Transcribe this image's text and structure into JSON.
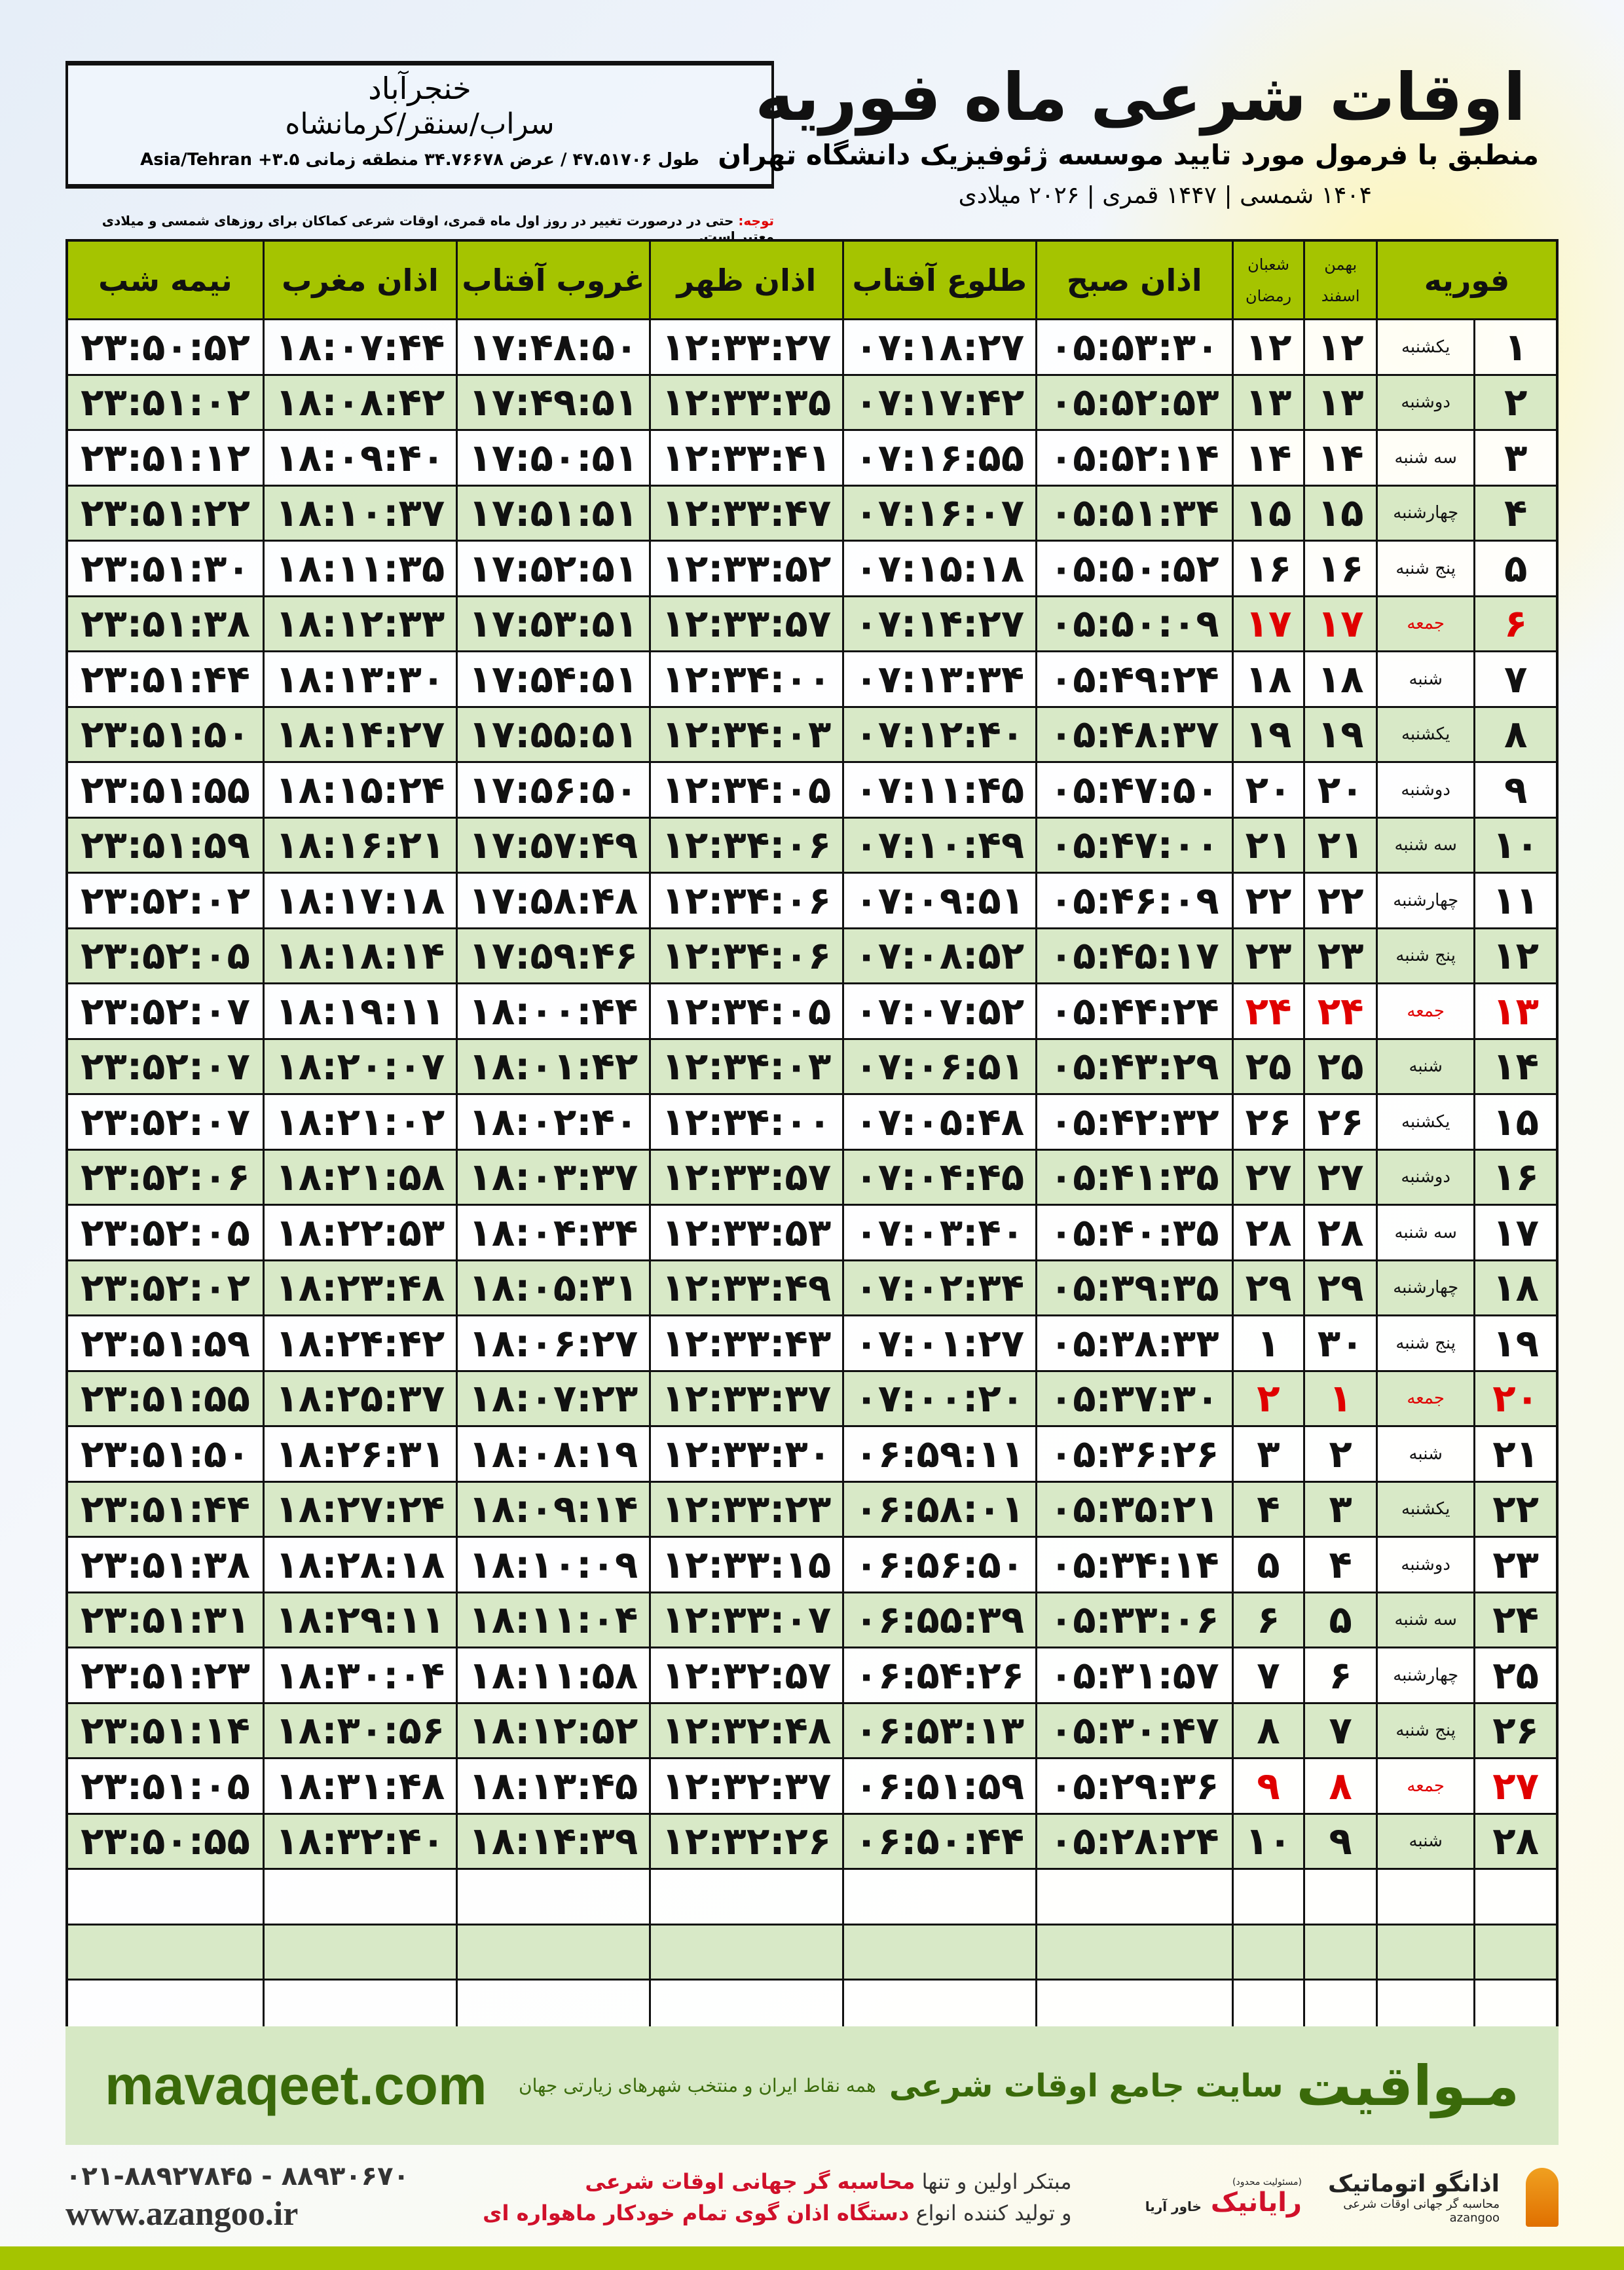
{
  "location": {
    "name": "خنجرآباد",
    "region": "سراب/سنقر/کرمانشاه",
    "coords": "طول ۴۷.۵۱۷۰۶ / عرض ۳۴.۷۶۶۷۸ منطقه زمانی Asia/Tehran +۳.۵"
  },
  "title": "اوقات شرعی ماه فوریه",
  "subtitle": "منطبق با فرمول مورد تایید موسسه ژئوفیزیک دانشگاه تهران",
  "years": "۱۴۰۴ شمسی | ۱۴۴۷ قمری | ۲۰۲۶ میلادی",
  "note": {
    "label": "توجه:",
    "text": " حتی در درصورت تغییر در روز اول ماه قمری، اوقات شرعی کماکان برای روزهای شمسی و میلادی معتبر است."
  },
  "colors": {
    "header": "#a5c400",
    "row_alt": "#d6e8c4",
    "friday": "#e00000",
    "brand": "#3a6a0a"
  },
  "table": {
    "headers": {
      "midnight": "نیمه شب",
      "maghrib": "اذان مغرب",
      "sunset": "غروب آفتاب",
      "dhuhr": "اذان ظهر",
      "sunrise": "طلوع آفتاب",
      "fajr": "اذان صبح",
      "hijri_top": "شعبان",
      "hijri_bottom": "رمضان",
      "shamsi_top": "بهمن",
      "shamsi_bottom": "اسفند",
      "month": "فوریه"
    },
    "rows": [
      {
        "day": "۱",
        "weekday": "یکشنبه",
        "shamsi": "۱۲",
        "hijri": "۱۲",
        "fajr": "۰۵:۵۳:۳۰",
        "sunrise": "۰۷:۱۸:۲۷",
        "dhuhr": "۱۲:۳۳:۲۷",
        "sunset": "۱۷:۴۸:۵۰",
        "maghrib": "۱۸:۰۷:۴۴",
        "midnight": "۲۳:۵۰:۵۲"
      },
      {
        "day": "۲",
        "weekday": "دوشنبه",
        "shamsi": "۱۳",
        "hijri": "۱۳",
        "fajr": "۰۵:۵۲:۵۳",
        "sunrise": "۰۷:۱۷:۴۲",
        "dhuhr": "۱۲:۳۳:۳۵",
        "sunset": "۱۷:۴۹:۵۱",
        "maghrib": "۱۸:۰۸:۴۲",
        "midnight": "۲۳:۵۱:۰۲"
      },
      {
        "day": "۳",
        "weekday": "سه شنبه",
        "shamsi": "۱۴",
        "hijri": "۱۴",
        "fajr": "۰۵:۵۲:۱۴",
        "sunrise": "۰۷:۱۶:۵۵",
        "dhuhr": "۱۲:۳۳:۴۱",
        "sunset": "۱۷:۵۰:۵۱",
        "maghrib": "۱۸:۰۹:۴۰",
        "midnight": "۲۳:۵۱:۱۲"
      },
      {
        "day": "۴",
        "weekday": "چهارشنبه",
        "shamsi": "۱۵",
        "hijri": "۱۵",
        "fajr": "۰۵:۵۱:۳۴",
        "sunrise": "۰۷:۱۶:۰۷",
        "dhuhr": "۱۲:۳۳:۴۷",
        "sunset": "۱۷:۵۱:۵۱",
        "maghrib": "۱۸:۱۰:۳۷",
        "midnight": "۲۳:۵۱:۲۲"
      },
      {
        "day": "۵",
        "weekday": "پنج شنبه",
        "shamsi": "۱۶",
        "hijri": "۱۶",
        "fajr": "۰۵:۵۰:۵۲",
        "sunrise": "۰۷:۱۵:۱۸",
        "dhuhr": "۱۲:۳۳:۵۲",
        "sunset": "۱۷:۵۲:۵۱",
        "maghrib": "۱۸:۱۱:۳۵",
        "midnight": "۲۳:۵۱:۳۰"
      },
      {
        "day": "۶",
        "weekday": "جمعه",
        "friday": true,
        "shamsi": "۱۷",
        "hijri": "۱۷",
        "fajr": "۰۵:۵۰:۰۹",
        "sunrise": "۰۷:۱۴:۲۷",
        "dhuhr": "۱۲:۳۳:۵۷",
        "sunset": "۱۷:۵۳:۵۱",
        "maghrib": "۱۸:۱۲:۳۳",
        "midnight": "۲۳:۵۱:۳۸"
      },
      {
        "day": "۷",
        "weekday": "شنبه",
        "shamsi": "۱۸",
        "hijri": "۱۸",
        "fajr": "۰۵:۴۹:۲۴",
        "sunrise": "۰۷:۱۳:۳۴",
        "dhuhr": "۱۲:۳۴:۰۰",
        "sunset": "۱۷:۵۴:۵۱",
        "maghrib": "۱۸:۱۳:۳۰",
        "midnight": "۲۳:۵۱:۴۴"
      },
      {
        "day": "۸",
        "weekday": "یکشنبه",
        "shamsi": "۱۹",
        "hijri": "۱۹",
        "fajr": "۰۵:۴۸:۳۷",
        "sunrise": "۰۷:۱۲:۴۰",
        "dhuhr": "۱۲:۳۴:۰۳",
        "sunset": "۱۷:۵۵:۵۱",
        "maghrib": "۱۸:۱۴:۲۷",
        "midnight": "۲۳:۵۱:۵۰"
      },
      {
        "day": "۹",
        "weekday": "دوشنبه",
        "shamsi": "۲۰",
        "hijri": "۲۰",
        "fajr": "۰۵:۴۷:۵۰",
        "sunrise": "۰۷:۱۱:۴۵",
        "dhuhr": "۱۲:۳۴:۰۵",
        "sunset": "۱۷:۵۶:۵۰",
        "maghrib": "۱۸:۱۵:۲۴",
        "midnight": "۲۳:۵۱:۵۵"
      },
      {
        "day": "۱۰",
        "weekday": "سه شنبه",
        "shamsi": "۲۱",
        "hijri": "۲۱",
        "fajr": "۰۵:۴۷:۰۰",
        "sunrise": "۰۷:۱۰:۴۹",
        "dhuhr": "۱۲:۳۴:۰۶",
        "sunset": "۱۷:۵۷:۴۹",
        "maghrib": "۱۸:۱۶:۲۱",
        "midnight": "۲۳:۵۱:۵۹"
      },
      {
        "day": "۱۱",
        "weekday": "چهارشنبه",
        "shamsi": "۲۲",
        "hijri": "۲۲",
        "fajr": "۰۵:۴۶:۰۹",
        "sunrise": "۰۷:۰۹:۵۱",
        "dhuhr": "۱۲:۳۴:۰۶",
        "sunset": "۱۷:۵۸:۴۸",
        "maghrib": "۱۸:۱۷:۱۸",
        "midnight": "۲۳:۵۲:۰۲"
      },
      {
        "day": "۱۲",
        "weekday": "پنج شنبه",
        "shamsi": "۲۳",
        "hijri": "۲۳",
        "fajr": "۰۵:۴۵:۱۷",
        "sunrise": "۰۷:۰۸:۵۲",
        "dhuhr": "۱۲:۳۴:۰۶",
        "sunset": "۱۷:۵۹:۴۶",
        "maghrib": "۱۸:۱۸:۱۴",
        "midnight": "۲۳:۵۲:۰۵"
      },
      {
        "day": "۱۳",
        "weekday": "جمعه",
        "friday": true,
        "shamsi": "۲۴",
        "hijri": "۲۴",
        "fajr": "۰۵:۴۴:۲۴",
        "sunrise": "۰۷:۰۷:۵۲",
        "dhuhr": "۱۲:۳۴:۰۵",
        "sunset": "۱۸:۰۰:۴۴",
        "maghrib": "۱۸:۱۹:۱۱",
        "midnight": "۲۳:۵۲:۰۷"
      },
      {
        "day": "۱۴",
        "weekday": "شنبه",
        "shamsi": "۲۵",
        "hijri": "۲۵",
        "fajr": "۰۵:۴۳:۲۹",
        "sunrise": "۰۷:۰۶:۵۱",
        "dhuhr": "۱۲:۳۴:۰۳",
        "sunset": "۱۸:۰۱:۴۲",
        "maghrib": "۱۸:۲۰:۰۷",
        "midnight": "۲۳:۵۲:۰۷"
      },
      {
        "day": "۱۵",
        "weekday": "یکشنبه",
        "shamsi": "۲۶",
        "hijri": "۲۶",
        "fajr": "۰۵:۴۲:۳۲",
        "sunrise": "۰۷:۰۵:۴۸",
        "dhuhr": "۱۲:۳۴:۰۰",
        "sunset": "۱۸:۰۲:۴۰",
        "maghrib": "۱۸:۲۱:۰۲",
        "midnight": "۲۳:۵۲:۰۷"
      },
      {
        "day": "۱۶",
        "weekday": "دوشنبه",
        "shamsi": "۲۷",
        "hijri": "۲۷",
        "fajr": "۰۵:۴۱:۳۵",
        "sunrise": "۰۷:۰۴:۴۵",
        "dhuhr": "۱۲:۳۳:۵۷",
        "sunset": "۱۸:۰۳:۳۷",
        "maghrib": "۱۸:۲۱:۵۸",
        "midnight": "۲۳:۵۲:۰۶"
      },
      {
        "day": "۱۷",
        "weekday": "سه شنبه",
        "shamsi": "۲۸",
        "hijri": "۲۸",
        "fajr": "۰۵:۴۰:۳۵",
        "sunrise": "۰۷:۰۳:۴۰",
        "dhuhr": "۱۲:۳۳:۵۳",
        "sunset": "۱۸:۰۴:۳۴",
        "maghrib": "۱۸:۲۲:۵۳",
        "midnight": "۲۳:۵۲:۰۵"
      },
      {
        "day": "۱۸",
        "weekday": "چهارشنبه",
        "shamsi": "۲۹",
        "hijri": "۲۹",
        "fajr": "۰۵:۳۹:۳۵",
        "sunrise": "۰۷:۰۲:۳۴",
        "dhuhr": "۱۲:۳۳:۴۹",
        "sunset": "۱۸:۰۵:۳۱",
        "maghrib": "۱۸:۲۳:۴۸",
        "midnight": "۲۳:۵۲:۰۲"
      },
      {
        "day": "۱۹",
        "weekday": "پنج شنبه",
        "shamsi": "۳۰",
        "hijri": "۱",
        "fajr": "۰۵:۳۸:۳۳",
        "sunrise": "۰۷:۰۱:۲۷",
        "dhuhr": "۱۲:۳۳:۴۳",
        "sunset": "۱۸:۰۶:۲۷",
        "maghrib": "۱۸:۲۴:۴۲",
        "midnight": "۲۳:۵۱:۵۹"
      },
      {
        "day": "۲۰",
        "weekday": "جمعه",
        "friday": true,
        "shamsi": "۱",
        "hijri": "۲",
        "fajr": "۰۵:۳۷:۳۰",
        "sunrise": "۰۷:۰۰:۲۰",
        "dhuhr": "۱۲:۳۳:۳۷",
        "sunset": "۱۸:۰۷:۲۳",
        "maghrib": "۱۸:۲۵:۳۷",
        "midnight": "۲۳:۵۱:۵۵"
      },
      {
        "day": "۲۱",
        "weekday": "شنبه",
        "shamsi": "۲",
        "hijri": "۳",
        "fajr": "۰۵:۳۶:۲۶",
        "sunrise": "۰۶:۵۹:۱۱",
        "dhuhr": "۱۲:۳۳:۳۰",
        "sunset": "۱۸:۰۸:۱۹",
        "maghrib": "۱۸:۲۶:۳۱",
        "midnight": "۲۳:۵۱:۵۰"
      },
      {
        "day": "۲۲",
        "weekday": "یکشنبه",
        "shamsi": "۳",
        "hijri": "۴",
        "fajr": "۰۵:۳۵:۲۱",
        "sunrise": "۰۶:۵۸:۰۱",
        "dhuhr": "۱۲:۳۳:۲۳",
        "sunset": "۱۸:۰۹:۱۴",
        "maghrib": "۱۸:۲۷:۲۴",
        "midnight": "۲۳:۵۱:۴۴"
      },
      {
        "day": "۲۳",
        "weekday": "دوشنبه",
        "shamsi": "۴",
        "hijri": "۵",
        "fajr": "۰۵:۳۴:۱۴",
        "sunrise": "۰۶:۵۶:۵۰",
        "dhuhr": "۱۲:۳۳:۱۵",
        "sunset": "۱۸:۱۰:۰۹",
        "maghrib": "۱۸:۲۸:۱۸",
        "midnight": "۲۳:۵۱:۳۸"
      },
      {
        "day": "۲۴",
        "weekday": "سه شنبه",
        "shamsi": "۵",
        "hijri": "۶",
        "fajr": "۰۵:۳۳:۰۶",
        "sunrise": "۰۶:۵۵:۳۹",
        "dhuhr": "۱۲:۳۳:۰۷",
        "sunset": "۱۸:۱۱:۰۴",
        "maghrib": "۱۸:۲۹:۱۱",
        "midnight": "۲۳:۵۱:۳۱"
      },
      {
        "day": "۲۵",
        "weekday": "چهارشنبه",
        "shamsi": "۶",
        "hijri": "۷",
        "fajr": "۰۵:۳۱:۵۷",
        "sunrise": "۰۶:۵۴:۲۶",
        "dhuhr": "۱۲:۳۲:۵۷",
        "sunset": "۱۸:۱۱:۵۸",
        "maghrib": "۱۸:۳۰:۰۴",
        "midnight": "۲۳:۵۱:۲۳"
      },
      {
        "day": "۲۶",
        "weekday": "پنج شنبه",
        "shamsi": "۷",
        "hijri": "۸",
        "fajr": "۰۵:۳۰:۴۷",
        "sunrise": "۰۶:۵۳:۱۳",
        "dhuhr": "۱۲:۳۲:۴۸",
        "sunset": "۱۸:۱۲:۵۲",
        "maghrib": "۱۸:۳۰:۵۶",
        "midnight": "۲۳:۵۱:۱۴"
      },
      {
        "day": "۲۷",
        "weekday": "جمعه",
        "friday": true,
        "shamsi": "۸",
        "hijri": "۹",
        "fajr": "۰۵:۲۹:۳۶",
        "sunrise": "۰۶:۵۱:۵۹",
        "dhuhr": "۱۲:۳۲:۳۷",
        "sunset": "۱۸:۱۳:۴۵",
        "maghrib": "۱۸:۳۱:۴۸",
        "midnight": "۲۳:۵۱:۰۵"
      },
      {
        "day": "۲۸",
        "weekday": "شنبه",
        "shamsi": "۹",
        "hijri": "۱۰",
        "fajr": "۰۵:۲۸:۲۴",
        "sunrise": "۰۶:۵۰:۴۴",
        "dhuhr": "۱۲:۳۲:۲۶",
        "sunset": "۱۸:۱۴:۳۹",
        "maghrib": "۱۸:۳۲:۴۰",
        "midnight": "۲۳:۵۰:۵۵"
      }
    ]
  },
  "banner": {
    "url": "mavaqeet.com",
    "brand": "مـواقیت",
    "tagline": "سایت جامع اوقات شرعی",
    "tagline2": "همه نقاط ایران و منتخب شهرهای زیارتی جهان"
  },
  "footer": {
    "phones": "۰۲۱-۸۸۹۲۷۸۴۵ - ۸۸۹۳۰۶۷۰",
    "website": "www.azangoo.ir",
    "promo1a": "مبتکر اولین و تنها ",
    "promo1b": "محاسبه گر جهانی اوقات شرعی",
    "promo2a": "و تولید کننده انواع ",
    "promo2b": "دستگاه اذان گوی تمام خودکار ماهواره ای",
    "logo_rayanik": "رایانیک",
    "logo_rayanik_sub": "خاور آریا",
    "logo_rayanik_note": "(مسئولیت محدود)",
    "logo_azangoo": "اذانگو اتوماتیک",
    "logo_azangoo_sub": "محاسبه گر جهانی اوقات شرعی",
    "logo_azangoo_en": "azangoo"
  }
}
